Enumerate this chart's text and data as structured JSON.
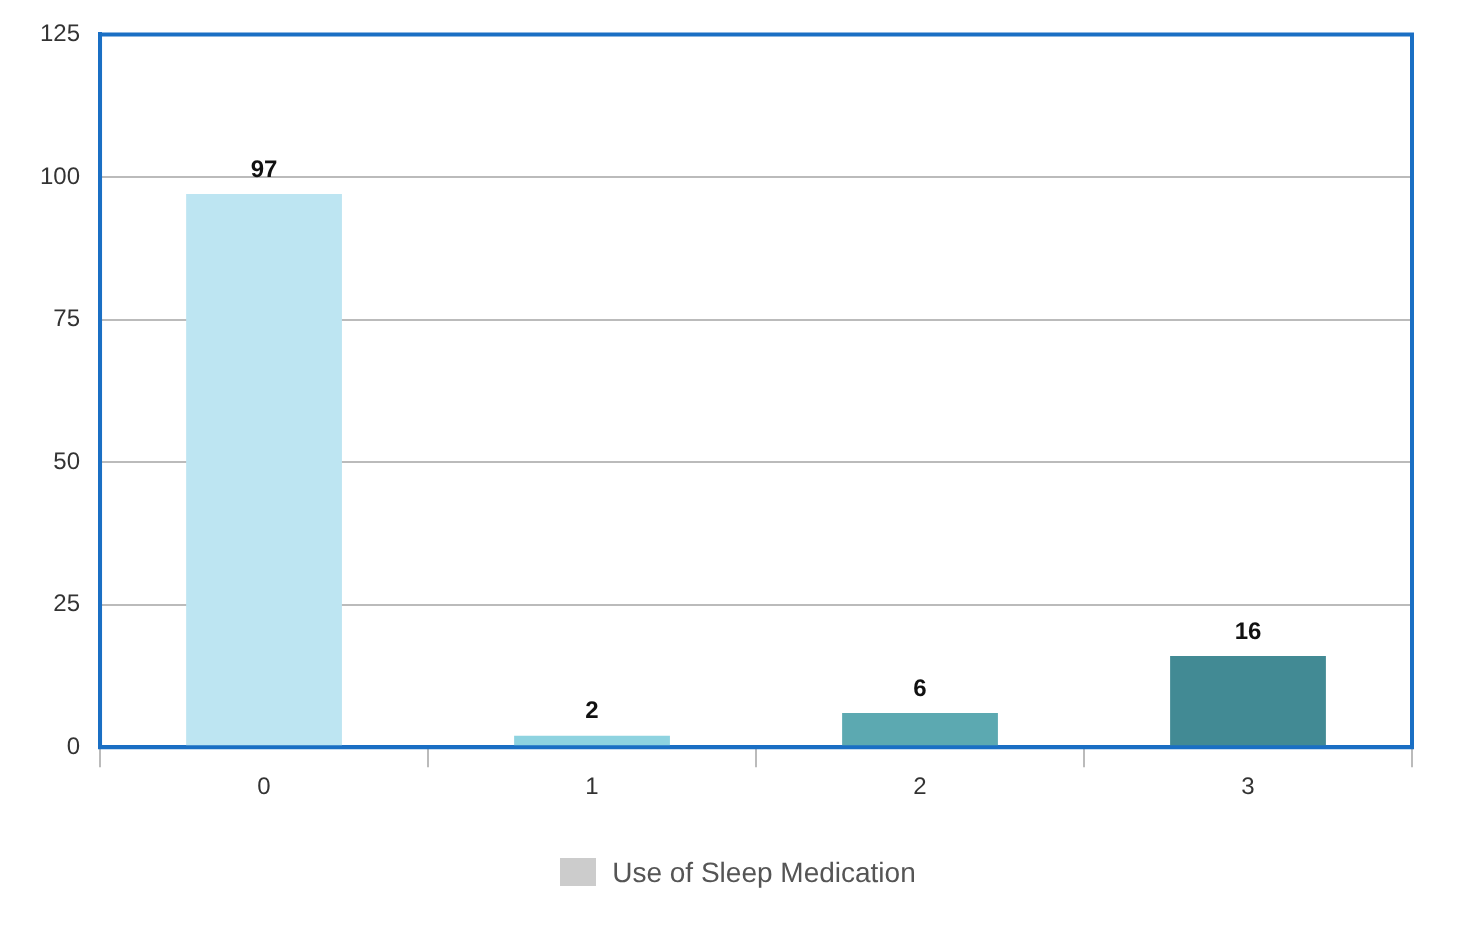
{
  "chart_data": {
    "type": "bar",
    "categories": [
      "0",
      "1",
      "2",
      "3"
    ],
    "series": [
      {
        "name": "Use of Sleep Medication",
        "color": "#cccccc",
        "colors": [
          "#bde5f2",
          "#8ed3e0",
          "#5ca9b1",
          "#428a94"
        ],
        "values": [
          97,
          2,
          6,
          16
        ]
      }
    ],
    "ylim": [
      0,
      125
    ],
    "yticks": [
      0,
      25,
      50,
      75,
      100,
      125
    ],
    "grid": "y",
    "legend": "bottom",
    "data_labels": true
  }
}
